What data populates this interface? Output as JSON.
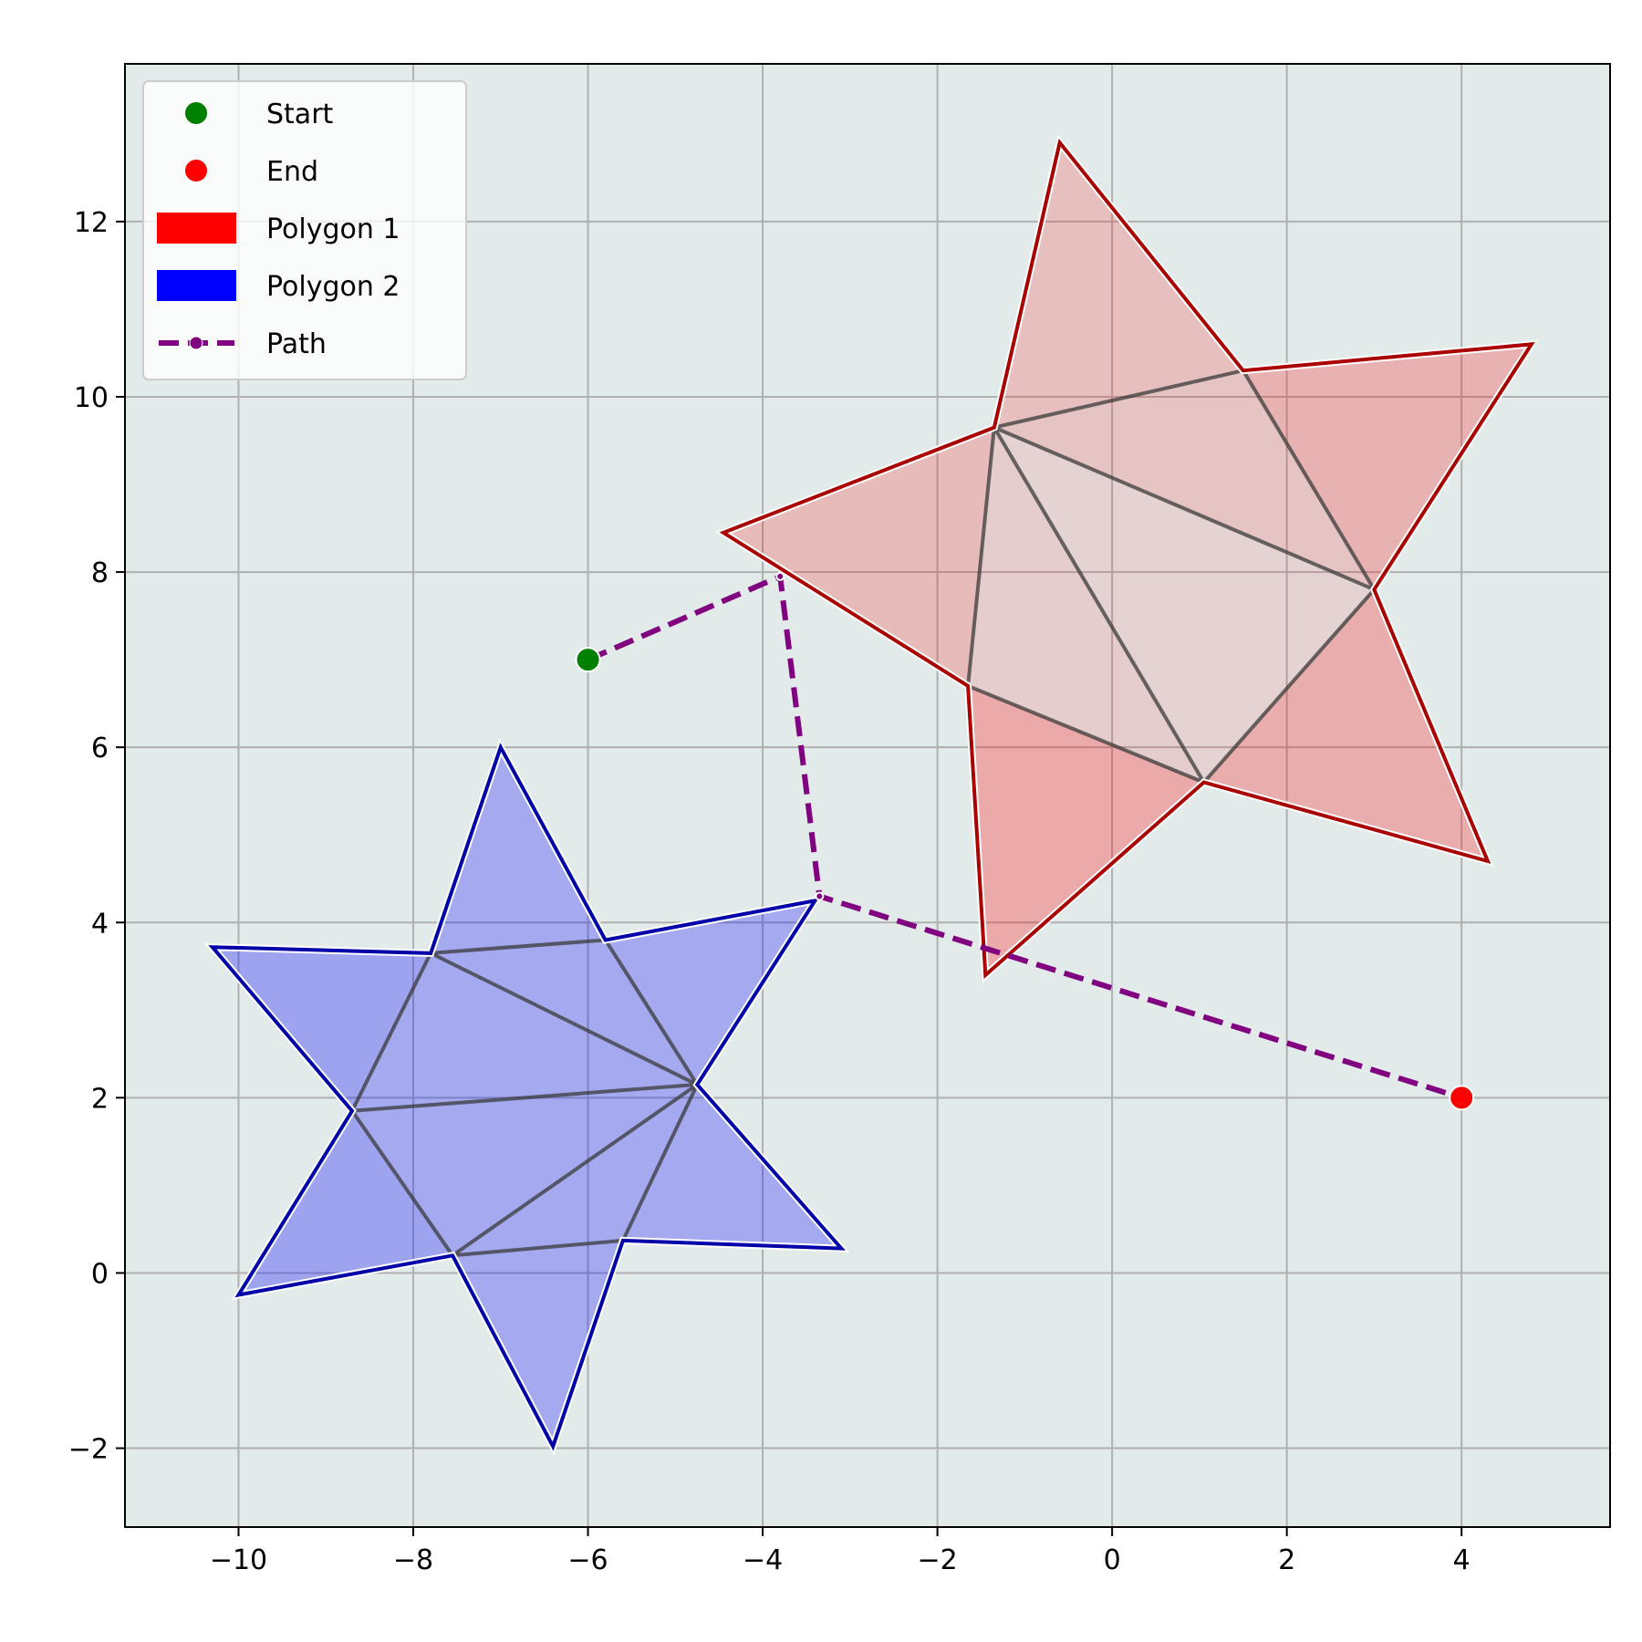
{
  "chart_data": {
    "type": "scatter",
    "title": "",
    "xlabel": "",
    "ylabel": "",
    "xlim": [
      -11.3,
      5.7
    ],
    "ylim": [
      -2.9,
      13.8
    ],
    "xticks": [
      -10,
      -8,
      -6,
      -4,
      -2,
      0,
      2,
      4
    ],
    "yticks": [
      -2,
      0,
      2,
      4,
      6,
      8,
      10,
      12
    ],
    "xtick_labels": [
      "−10",
      "−8",
      "−6",
      "−4",
      "−2",
      "0",
      "2",
      "4"
    ],
    "ytick_labels": [
      "−2",
      "0",
      "2",
      "4",
      "6",
      "8",
      "10",
      "12"
    ],
    "grid": true,
    "background_color": "#e3eaea",
    "legend": {
      "placement": "top-left",
      "entries": [
        {
          "label": "Start",
          "kind": "point",
          "color": "#008000"
        },
        {
          "label": "End",
          "kind": "point",
          "color": "#ff0000"
        },
        {
          "label": "Polygon 1",
          "kind": "patch",
          "color": "#ff0000"
        },
        {
          "label": "Polygon 2",
          "kind": "patch",
          "color": "#0000ff"
        },
        {
          "label": "Path",
          "kind": "line",
          "color": "#800080"
        }
      ]
    },
    "start": {
      "x": -6,
      "y": 7,
      "color": "#008000"
    },
    "end": {
      "x": 4,
      "y": 2,
      "color": "#ff0000"
    },
    "polygons": [
      {
        "name": "Polygon 1",
        "edge_color": "#aa0000",
        "fill_color": "#ff0000",
        "vertices": [
          [
            -0.6,
            12.9
          ],
          [
            1.5,
            10.3
          ],
          [
            4.8,
            10.6
          ],
          [
            3.0,
            7.8
          ],
          [
            4.3,
            4.7
          ],
          [
            1.05,
            5.6
          ],
          [
            -1.45,
            3.4
          ],
          [
            -1.65,
            6.7
          ],
          [
            -4.45,
            8.45
          ],
          [
            -1.35,
            9.65
          ]
        ],
        "triangles": [
          {
            "pts": [
              [
                -0.6,
                12.9
              ],
              [
                1.5,
                10.3
              ],
              [
                -1.35,
                9.65
              ]
            ],
            "alpha": 0.18
          },
          {
            "pts": [
              [
                1.5,
                10.3
              ],
              [
                4.8,
                10.6
              ],
              [
                3.0,
                7.8
              ]
            ],
            "alpha": 0.24
          },
          {
            "pts": [
              [
                3.0,
                7.8
              ],
              [
                4.3,
                4.7
              ],
              [
                1.05,
                5.6
              ]
            ],
            "alpha": 0.26
          },
          {
            "pts": [
              [
                1.05,
                5.6
              ],
              [
                -1.45,
                3.4
              ],
              [
                -1.65,
                6.7
              ]
            ],
            "alpha": 0.28
          },
          {
            "pts": [
              [
                -1.65,
                6.7
              ],
              [
                -4.45,
                8.45
              ],
              [
                -1.35,
                9.65
              ]
            ],
            "alpha": 0.2
          },
          {
            "pts": [
              [
                -1.35,
                9.65
              ],
              [
                1.5,
                10.3
              ],
              [
                3.0,
                7.8
              ]
            ],
            "alpha": 0.16
          },
          {
            "pts": [
              [
                -1.35,
                9.65
              ],
              [
                3.0,
                7.8
              ],
              [
                1.05,
                5.6
              ]
            ],
            "alpha": 0.1
          },
          {
            "pts": [
              [
                -1.35,
                9.65
              ],
              [
                1.05,
                5.6
              ],
              [
                -1.65,
                6.7
              ]
            ],
            "alpha": 0.12
          }
        ],
        "diagonals": [
          [
            [
              1.5,
              10.3
            ],
            [
              3.0,
              7.8
            ]
          ],
          [
            [
              -1.35,
              9.65
            ],
            [
              1.5,
              10.3
            ]
          ],
          [
            [
              -1.35,
              9.65
            ],
            [
              3.0,
              7.8
            ]
          ],
          [
            [
              -1.35,
              9.65
            ],
            [
              1.05,
              5.6
            ]
          ],
          [
            [
              3.0,
              7.8
            ],
            [
              1.05,
              5.6
            ]
          ],
          [
            [
              -1.35,
              9.65
            ],
            [
              -1.65,
              6.7
            ]
          ],
          [
            [
              -1.65,
              6.7
            ],
            [
              1.05,
              5.6
            ]
          ]
        ]
      },
      {
        "name": "Polygon 2",
        "edge_color": "#0000aa",
        "fill_color": "#0000ff",
        "vertices": [
          [
            -7.0,
            6.0
          ],
          [
            -5.8,
            3.8
          ],
          [
            -3.4,
            4.25
          ],
          [
            -4.75,
            2.15
          ],
          [
            -3.1,
            0.28
          ],
          [
            -5.6,
            0.37
          ],
          [
            -6.4,
            -1.98
          ],
          [
            -7.55,
            0.2
          ],
          [
            -10.0,
            -0.25
          ],
          [
            -8.7,
            1.85
          ],
          [
            -10.3,
            3.72
          ],
          [
            -7.8,
            3.65
          ]
        ],
        "triangles": [
          {
            "pts": [
              [
                -7.0,
                6.0
              ],
              [
                -5.8,
                3.8
              ],
              [
                -7.8,
                3.65
              ]
            ],
            "alpha": 0.28
          },
          {
            "pts": [
              [
                -5.8,
                3.8
              ],
              [
                -3.4,
                4.25
              ],
              [
                -4.75,
                2.15
              ]
            ],
            "alpha": 0.28
          },
          {
            "pts": [
              [
                -4.75,
                2.15
              ],
              [
                -3.1,
                0.28
              ],
              [
                -5.6,
                0.37
              ]
            ],
            "alpha": 0.28
          },
          {
            "pts": [
              [
                -5.6,
                0.37
              ],
              [
                -6.4,
                -1.98
              ],
              [
                -7.55,
                0.2
              ]
            ],
            "alpha": 0.28
          },
          {
            "pts": [
              [
                -7.55,
                0.2
              ],
              [
                -10.0,
                -0.25
              ],
              [
                -8.7,
                1.85
              ]
            ],
            "alpha": 0.3
          },
          {
            "pts": [
              [
                -8.7,
                1.85
              ],
              [
                -10.3,
                3.72
              ],
              [
                -7.8,
                3.65
              ]
            ],
            "alpha": 0.3
          },
          {
            "pts": [
              [
                -7.8,
                3.65
              ],
              [
                -5.8,
                3.8
              ],
              [
                -4.75,
                2.15
              ]
            ],
            "alpha": 0.28
          },
          {
            "pts": [
              [
                -7.8,
                3.65
              ],
              [
                -4.75,
                2.15
              ],
              [
                -8.7,
                1.85
              ]
            ],
            "alpha": 0.28
          },
          {
            "pts": [
              [
                -8.7,
                1.85
              ],
              [
                -4.75,
                2.15
              ],
              [
                -7.55,
                0.2
              ]
            ],
            "alpha": 0.28
          },
          {
            "pts": [
              [
                -7.55,
                0.2
              ],
              [
                -4.75,
                2.15
              ],
              [
                -5.6,
                0.37
              ]
            ],
            "alpha": 0.28
          }
        ],
        "diagonals": [
          [
            [
              -7.8,
              3.65
            ],
            [
              -5.8,
              3.8
            ]
          ],
          [
            [
              -5.8,
              3.8
            ],
            [
              -4.75,
              2.15
            ]
          ],
          [
            [
              -7.8,
              3.65
            ],
            [
              -4.75,
              2.15
            ]
          ],
          [
            [
              -7.8,
              3.65
            ],
            [
              -8.7,
              1.85
            ]
          ],
          [
            [
              -8.7,
              1.85
            ],
            [
              -4.75,
              2.15
            ]
          ],
          [
            [
              -8.7,
              1.85
            ],
            [
              -7.55,
              0.2
            ]
          ],
          [
            [
              -7.55,
              0.2
            ],
            [
              -4.75,
              2.15
            ]
          ],
          [
            [
              -4.75,
              2.15
            ],
            [
              -5.6,
              0.37
            ]
          ],
          [
            [
              -7.55,
              0.2
            ],
            [
              -5.6,
              0.37
            ]
          ]
        ]
      }
    ],
    "path": {
      "name": "Path",
      "color": "#800080",
      "points": [
        [
          -6,
          7
        ],
        [
          -3.8,
          7.95
        ],
        [
          -3.35,
          4.3
        ],
        [
          4,
          2
        ]
      ]
    }
  }
}
